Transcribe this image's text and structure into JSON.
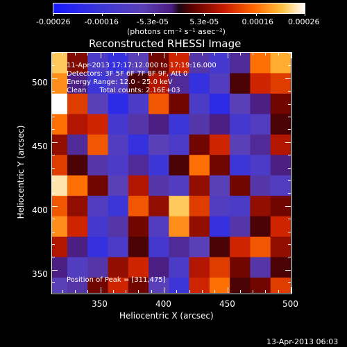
{
  "colorbar": {
    "tick_labels": [
      "-0.00026",
      "-0.00016",
      "-5.3e-05",
      "5.3e-05",
      "0.00016",
      "0.00026"
    ],
    "unit_label": "(photons cm⁻² s⁻¹ asec⁻²)",
    "colors": [
      "#1818ff",
      "#5a40b8",
      "#1a0814",
      "#c81c00",
      "#ff6a00",
      "#ffffff"
    ]
  },
  "plot": {
    "title": "Reconstructed RHESSI Image",
    "xlabel": "Heliocentric X (arcsec)",
    "ylabel": "Heliocentric Y (arcsec)",
    "xticks": [
      "350",
      "400",
      "450",
      "500"
    ],
    "yticks": [
      "350",
      "400",
      "450",
      "500"
    ],
    "info_lines": [
      "11-Apr-2013 17:17:12.000 to 17:19:16.000",
      "Detectors: 3F 5F 6F 7F 8F 9F, Att 0",
      "Energy Range: 12.0 - 25.0 keV",
      "Clean      Total counts: 2.16E+03"
    ],
    "peak_text": "Position of Peak = [311,475]"
  },
  "footer": {
    "timestamp": "13-Apr-2013 06:03"
  },
  "chart_data": {
    "type": "heatmap",
    "title": "Reconstructed RHESSI Image",
    "xlabel": "Heliocentric X (arcsec)",
    "ylabel": "Heliocentric Y (arcsec)",
    "xlim": [
      312,
      500
    ],
    "ylim": [
      332,
      520
    ],
    "zlim": [
      -0.00026,
      0.00026
    ],
    "colorbar_label": "(photons cm^-2 s^-1 asec^-2)",
    "peak": [
      311,
      475
    ],
    "grid_x": [
      316,
      332,
      348,
      364,
      380,
      396,
      412,
      428,
      444,
      460,
      476,
      492
    ],
    "grid_y": [
      512,
      496,
      480,
      464,
      448,
      432,
      416,
      400,
      384,
      368,
      352,
      336
    ],
    "values": [
      [
        0.00022,
        5e-05,
        -0.00012,
        -0.00018,
        -8e-05,
        4e-05,
        0.0001,
        -6e-05,
        -0.00014,
        -4e-05,
        0.00016,
        0.0002
      ],
      [
        0.00018,
        -2e-05,
        -0.00016,
        -0.0001,
        2e-05,
        8e-05,
        -4e-05,
        -0.00018,
        -0.0001,
        2e-05,
        0.0001,
        0.00012
      ],
      [
        0.00026,
        0.00012,
        -8e-05,
        -0.0002,
        -0.00012,
        0.00014,
        4e-05,
        -0.00012,
        -0.0002,
        -8e-05,
        -2e-05,
        4e-05
      ],
      [
        0.00016,
        8e-05,
        0.0001,
        -0.00014,
        -6e-05,
        -2e-05,
        -0.00016,
        -6e-05,
        -2e-05,
        -0.00014,
        -0.0001,
        2e-05
      ],
      [
        6e-05,
        -4e-05,
        0.00014,
        -0.0001,
        -0.00018,
        -8e-05,
        -0.00012,
        4e-05,
        0.0001,
        -8e-05,
        -4e-05,
        8e-05
      ],
      [
        0.00012,
        2e-05,
        -6e-05,
        -0.00012,
        -4e-05,
        -0.00016,
        2e-05,
        0.00016,
        4e-05,
        -0.00016,
        -0.00012,
        -2e-05
      ],
      [
        0.00024,
        0.00016,
        4e-05,
        -8e-05,
        8e-05,
        -6e-05,
        -0.0001,
        6e-05,
        -8e-05,
        4e-05,
        -6e-05,
        -0.0001
      ],
      [
        0.00014,
        6e-05,
        -0.0001,
        -0.00016,
        0.00014,
        6e-05,
        0.00022,
        0.00012,
        -0.0001,
        -0.00012,
        6e-05,
        4e-05
      ],
      [
        0.00018,
        0.0001,
        -0.00014,
        -6e-05,
        4e-05,
        -0.0001,
        0.00018,
        6e-05,
        -0.00018,
        -6e-05,
        2e-05,
        0.0001
      ],
      [
        8e-05,
        -2e-05,
        -0.00018,
        -0.00012,
        2e-05,
        -0.00014,
        -4e-05,
        -8e-05,
        2e-05,
        0.0001,
        0.00014,
        6e-05
      ],
      [
        -2e-05,
        -0.0001,
        -6e-05,
        6e-05,
        0.0001,
        -2e-05,
        -0.00012,
        8e-05,
        0.00012,
        4e-05,
        -6e-05,
        2e-05
      ],
      [
        -8e-05,
        -6e-05,
        4e-05,
        0.0001,
        4e-05,
        -8e-05,
        -0.00016,
        0.0001,
        0.00016,
        2e-05,
        4e-05,
        0.00012
      ]
    ]
  }
}
